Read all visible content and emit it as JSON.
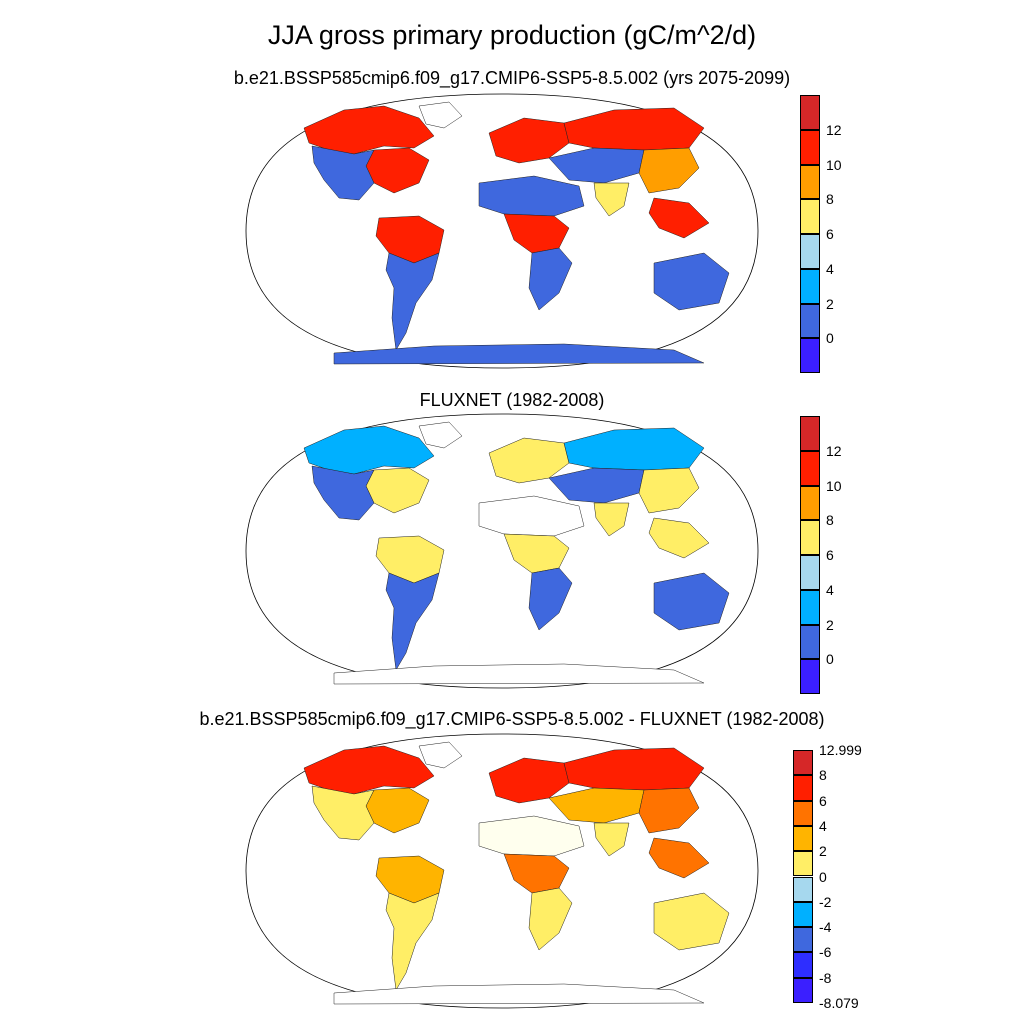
{
  "title": "JJA gross primary production (gC/m^2/d)",
  "panels": [
    {
      "id": "model",
      "title": "b.e21.BSSP585cmip6.f09_g17.CMIP6-SSP5-8.5.002 (yrs 2075-2099)",
      "colorbar": {
        "colors": [
          "#d62728",
          "#ff1f00",
          "#ff9e00",
          "#ffee66",
          "#a6d8ee",
          "#00b0ff",
          "#3f68de",
          "#3b1fff"
        ],
        "labels": [
          "12",
          "10",
          "8",
          "6",
          "4",
          "2",
          "0"
        ]
      },
      "regions": [
        {
          "name": "canada-boreal",
          "color": "#ff1f00"
        },
        {
          "name": "eastern-us",
          "color": "#ff1f00"
        },
        {
          "name": "western-na",
          "color": "#3f68de"
        },
        {
          "name": "amazon",
          "color": "#ff1f00"
        },
        {
          "name": "south-america-south",
          "color": "#3f68de"
        },
        {
          "name": "sahara",
          "color": "#3f68de"
        },
        {
          "name": "congo",
          "color": "#ff1f00"
        },
        {
          "name": "southern-africa",
          "color": "#3f68de"
        },
        {
          "name": "europe",
          "color": "#ff1f00"
        },
        {
          "name": "siberia",
          "color": "#ff1f00"
        },
        {
          "name": "central-asia",
          "color": "#3f68de"
        },
        {
          "name": "east-asia",
          "color": "#ff9e00"
        },
        {
          "name": "south-asia",
          "color": "#ffee66"
        },
        {
          "name": "se-asia",
          "color": "#ff1f00"
        },
        {
          "name": "australia",
          "color": "#3f68de"
        },
        {
          "name": "antarctica",
          "color": "#3f68de"
        },
        {
          "name": "greenland",
          "color": "#ffffff"
        }
      ]
    },
    {
      "id": "obs",
      "title": "FLUXNET (1982-2008)",
      "colorbar": {
        "colors": [
          "#d62728",
          "#ff1f00",
          "#ff9e00",
          "#ffee66",
          "#a6d8ee",
          "#00b0ff",
          "#3f68de",
          "#3b1fff"
        ],
        "labels": [
          "12",
          "10",
          "8",
          "6",
          "4",
          "2",
          "0"
        ]
      },
      "regions": [
        {
          "name": "canada-boreal",
          "color": "#00b0ff"
        },
        {
          "name": "eastern-us",
          "color": "#ffee66"
        },
        {
          "name": "western-na",
          "color": "#3f68de"
        },
        {
          "name": "amazon",
          "color": "#ffee66"
        },
        {
          "name": "south-america-south",
          "color": "#3f68de"
        },
        {
          "name": "sahara",
          "color": "#ffffff"
        },
        {
          "name": "congo",
          "color": "#ffee66"
        },
        {
          "name": "southern-africa",
          "color": "#3f68de"
        },
        {
          "name": "europe",
          "color": "#ffee66"
        },
        {
          "name": "siberia",
          "color": "#00b0ff"
        },
        {
          "name": "central-asia",
          "color": "#3f68de"
        },
        {
          "name": "east-asia",
          "color": "#ffee66"
        },
        {
          "name": "south-asia",
          "color": "#ffee66"
        },
        {
          "name": "se-asia",
          "color": "#ffee66"
        },
        {
          "name": "australia",
          "color": "#3f68de"
        },
        {
          "name": "antarctica",
          "color": "#ffffff"
        },
        {
          "name": "greenland",
          "color": "#ffffff"
        }
      ]
    },
    {
      "id": "diff",
      "title": "b.e21.BSSP585cmip6.f09_g17.CMIP6-SSP5-8.5.002 - FLUXNET (1982-2008)",
      "colorbar": {
        "colors": [
          "#d62728",
          "#ff1f00",
          "#ff7300",
          "#ffb400",
          "#ffee66",
          "#a6d8ee",
          "#00b0ff",
          "#3f68de",
          "#2e2eff",
          "#3b1fff"
        ],
        "labels": [
          "12.999",
          "8",
          "6",
          "4",
          "2",
          "0",
          "-2",
          "-4",
          "-6",
          "-8",
          "-8.079"
        ]
      },
      "regions": [
        {
          "name": "canada-boreal",
          "color": "#ff1f00"
        },
        {
          "name": "eastern-us",
          "color": "#ffb400"
        },
        {
          "name": "western-na",
          "color": "#ffee66"
        },
        {
          "name": "amazon",
          "color": "#ffb400"
        },
        {
          "name": "south-america-south",
          "color": "#ffee66"
        },
        {
          "name": "sahara",
          "color": "#ffffee"
        },
        {
          "name": "congo",
          "color": "#ff7300"
        },
        {
          "name": "southern-africa",
          "color": "#ffee66"
        },
        {
          "name": "europe",
          "color": "#ff1f00"
        },
        {
          "name": "siberia",
          "color": "#ff1f00"
        },
        {
          "name": "central-asia",
          "color": "#ffb400"
        },
        {
          "name": "east-asia",
          "color": "#ff7300"
        },
        {
          "name": "south-asia",
          "color": "#ffee66"
        },
        {
          "name": "se-asia",
          "color": "#ff7300"
        },
        {
          "name": "australia",
          "color": "#ffee66"
        },
        {
          "name": "antarctica",
          "color": "#ffffff"
        },
        {
          "name": "greenland",
          "color": "#ffffff"
        }
      ]
    }
  ]
}
